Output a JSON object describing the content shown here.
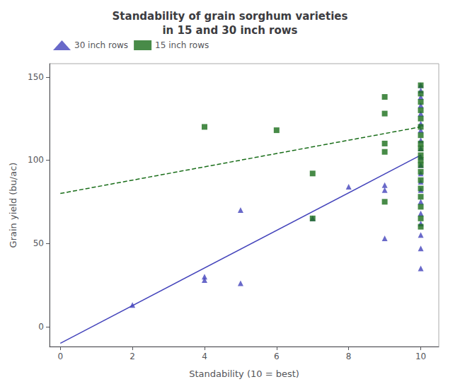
{
  "chart_data": {
    "type": "scatter",
    "title": "Standability of grain sorghum varieties\nin 15 and 30 inch rows",
    "xlabel": "Standability (10 = best)",
    "ylabel": "Grain yield (bu/ac)",
    "xlim": [
      -0.3,
      10.5
    ],
    "ylim": [
      -12,
      158
    ],
    "xticks": [
      0,
      2,
      4,
      6,
      8,
      10
    ],
    "yticks": [
      0,
      50,
      100,
      150
    ],
    "grid": false,
    "legend": "upper left",
    "series": [
      {
        "name": "30 inch rows",
        "color": "#4444bb",
        "marker": "triangle",
        "line_style": "solid",
        "x": [
          2,
          4,
          4,
          5,
          5,
          7,
          8,
          9,
          9,
          9,
          10,
          10,
          10,
          10,
          10,
          10,
          10,
          10,
          10,
          10,
          10,
          10,
          10,
          10,
          10,
          10,
          10,
          10,
          10,
          10
        ],
        "values": [
          13,
          30,
          28,
          70,
          26,
          65,
          84,
          85,
          82,
          53,
          145,
          142,
          138,
          133,
          128,
          122,
          118,
          112,
          107,
          102,
          97,
          92,
          87,
          82,
          75,
          68,
          62,
          55,
          47,
          35
        ],
        "fit": {
          "x": [
            0,
            10
          ],
          "values": [
            -10,
            103
          ]
        }
      },
      {
        "name": "15 inch rows",
        "color": "#1a6e1a",
        "marker": "square",
        "line_style": "dashed",
        "x": [
          4,
          6,
          7,
          7,
          9,
          9,
          9,
          9,
          9,
          10,
          10,
          10,
          10,
          10,
          10,
          10,
          10,
          10,
          10,
          10,
          10,
          10,
          10,
          10,
          10,
          10,
          10,
          10
        ],
        "values": [
          120,
          118,
          92,
          65,
          138,
          128,
          110,
          105,
          75,
          145,
          140,
          135,
          130,
          125,
          120,
          115,
          110,
          107,
          103,
          100,
          97,
          93,
          88,
          83,
          78,
          72,
          65,
          60
        ],
        "fit": {
          "x": [
            0,
            10
          ],
          "values": [
            80,
            120
          ]
        }
      }
    ]
  }
}
